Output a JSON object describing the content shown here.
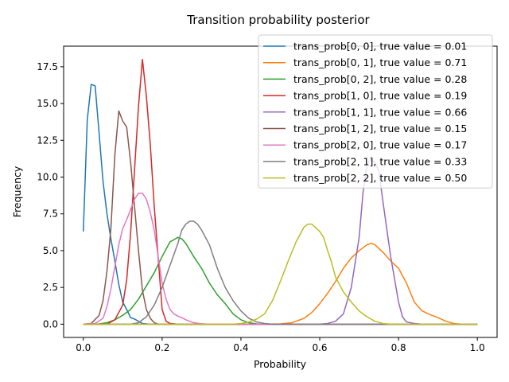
{
  "chart_data": {
    "type": "line",
    "title": "Transition probability posterior",
    "xlabel": "Probability",
    "ylabel": "Frequency",
    "xlim": [
      -0.05,
      1.05
    ],
    "ylim": [
      -0.9,
      18.9
    ],
    "xticks": [
      "0.0",
      "0.2",
      "0.4",
      "0.6",
      "0.8",
      "1.0"
    ],
    "yticks": [
      "0.0",
      "2.5",
      "5.0",
      "7.5",
      "10.0",
      "12.5",
      "15.0",
      "17.5"
    ],
    "grid": false,
    "legend_position": "upper-right",
    "series": [
      {
        "name": "trans_prob[0, 0], true value = 0.01",
        "color": "#1f77b4",
        "points": [
          [
            0,
            6.3
          ],
          [
            0.01,
            13.9
          ],
          [
            0.02,
            16.3
          ],
          [
            0.03,
            16.2
          ],
          [
            0.04,
            13.0
          ],
          [
            0.05,
            9.7
          ],
          [
            0.06,
            7.5
          ],
          [
            0.07,
            5.8
          ],
          [
            0.08,
            4.3
          ],
          [
            0.09,
            2.7
          ],
          [
            0.1,
            1.5
          ],
          [
            0.11,
            1.0
          ],
          [
            0.12,
            0.45
          ],
          [
            0.13,
            0.35
          ],
          [
            0.14,
            0.2
          ],
          [
            0.15,
            0.05
          ],
          [
            0.17,
            0.0
          ],
          [
            1.0,
            0.0
          ]
        ]
      },
      {
        "name": "trans_prob[0, 1], true value = 0.71",
        "color": "#ff7f0e",
        "points": [
          [
            0,
            0
          ],
          [
            0.45,
            0
          ],
          [
            0.5,
            0.02
          ],
          [
            0.53,
            0.1
          ],
          [
            0.56,
            0.4
          ],
          [
            0.58,
            0.8
          ],
          [
            0.6,
            1.4
          ],
          [
            0.62,
            2.1
          ],
          [
            0.64,
            2.9
          ],
          [
            0.66,
            3.8
          ],
          [
            0.68,
            4.5
          ],
          [
            0.7,
            5.0
          ],
          [
            0.72,
            5.4
          ],
          [
            0.73,
            5.5
          ],
          [
            0.74,
            5.4
          ],
          [
            0.76,
            4.9
          ],
          [
            0.78,
            4.3
          ],
          [
            0.8,
            3.8
          ],
          [
            0.82,
            2.8
          ],
          [
            0.84,
            1.5
          ],
          [
            0.86,
            0.9
          ],
          [
            0.88,
            0.65
          ],
          [
            0.9,
            0.45
          ],
          [
            0.92,
            0.2
          ],
          [
            0.94,
            0.05
          ],
          [
            0.96,
            0
          ],
          [
            1.0,
            0
          ]
        ]
      },
      {
        "name": "trans_prob[0, 2], true value = 0.28",
        "color": "#2ca02c",
        "points": [
          [
            0,
            0
          ],
          [
            0.04,
            0.02
          ],
          [
            0.06,
            0.1
          ],
          [
            0.08,
            0.3
          ],
          [
            0.1,
            0.6
          ],
          [
            0.12,
            1.0
          ],
          [
            0.14,
            1.7
          ],
          [
            0.16,
            2.6
          ],
          [
            0.18,
            3.5
          ],
          [
            0.2,
            4.6
          ],
          [
            0.22,
            5.6
          ],
          [
            0.24,
            5.9
          ],
          [
            0.25,
            5.8
          ],
          [
            0.26,
            5.5
          ],
          [
            0.28,
            4.6
          ],
          [
            0.3,
            3.8
          ],
          [
            0.32,
            2.8
          ],
          [
            0.34,
            2.0
          ],
          [
            0.36,
            1.4
          ],
          [
            0.38,
            0.7
          ],
          [
            0.4,
            0.3
          ],
          [
            0.42,
            0.1
          ],
          [
            0.44,
            0.02
          ],
          [
            0.46,
            0
          ],
          [
            1.0,
            0
          ]
        ]
      },
      {
        "name": "trans_prob[1, 0], true value = 0.19",
        "color": "#d62728",
        "points": [
          [
            0,
            0
          ],
          [
            0.06,
            0
          ],
          [
            0.08,
            0.3
          ],
          [
            0.1,
            1.3
          ],
          [
            0.11,
            3.0
          ],
          [
            0.12,
            6.2
          ],
          [
            0.13,
            10.5
          ],
          [
            0.14,
            14.8
          ],
          [
            0.15,
            18.0
          ],
          [
            0.16,
            15.5
          ],
          [
            0.17,
            12.2
          ],
          [
            0.18,
            8.0
          ],
          [
            0.19,
            4.5
          ],
          [
            0.2,
            1.0
          ],
          [
            0.21,
            0.2
          ],
          [
            0.22,
            0.05
          ],
          [
            0.24,
            0
          ],
          [
            1.0,
            0
          ]
        ]
      },
      {
        "name": "trans_prob[1, 1], true value = 0.66",
        "color": "#9467bd",
        "points": [
          [
            0,
            0
          ],
          [
            0.6,
            0
          ],
          [
            0.62,
            0.05
          ],
          [
            0.64,
            0.2
          ],
          [
            0.66,
            0.7
          ],
          [
            0.68,
            2.5
          ],
          [
            0.7,
            5.9
          ],
          [
            0.71,
            9.0
          ],
          [
            0.72,
            10.9
          ],
          [
            0.73,
            11.2
          ],
          [
            0.74,
            11.0
          ],
          [
            0.75,
            10.4
          ],
          [
            0.76,
            8.4
          ],
          [
            0.78,
            4.6
          ],
          [
            0.8,
            1.5
          ],
          [
            0.81,
            0.5
          ],
          [
            0.82,
            0.15
          ],
          [
            0.84,
            0.05
          ],
          [
            0.86,
            0
          ],
          [
            1.0,
            0
          ]
        ]
      },
      {
        "name": "trans_prob[1, 2], true value = 0.15",
        "color": "#8c564b",
        "points": [
          [
            0,
            0
          ],
          [
            0.02,
            0.05
          ],
          [
            0.04,
            0.6
          ],
          [
            0.05,
            1.6
          ],
          [
            0.06,
            3.6
          ],
          [
            0.07,
            6.5
          ],
          [
            0.08,
            11.5
          ],
          [
            0.09,
            14.5
          ],
          [
            0.1,
            13.8
          ],
          [
            0.11,
            13.4
          ],
          [
            0.12,
            11.0
          ],
          [
            0.13,
            8.0
          ],
          [
            0.14,
            5.0
          ],
          [
            0.15,
            2.3
          ],
          [
            0.16,
            1.0
          ],
          [
            0.17,
            0.4
          ],
          [
            0.18,
            0.1
          ],
          [
            0.19,
            0
          ],
          [
            1.0,
            0
          ]
        ]
      },
      {
        "name": "trans_prob[2, 0], true value = 0.17",
        "color": "#e377c2",
        "points": [
          [
            0,
            0
          ],
          [
            0.03,
            0.05
          ],
          [
            0.05,
            0.4
          ],
          [
            0.06,
            1.2
          ],
          [
            0.07,
            2.4
          ],
          [
            0.08,
            3.9
          ],
          [
            0.09,
            5.4
          ],
          [
            0.1,
            6.5
          ],
          [
            0.11,
            7.1
          ],
          [
            0.12,
            7.8
          ],
          [
            0.13,
            8.5
          ],
          [
            0.14,
            8.9
          ],
          [
            0.15,
            8.9
          ],
          [
            0.16,
            8.5
          ],
          [
            0.17,
            7.6
          ],
          [
            0.18,
            6.4
          ],
          [
            0.19,
            4.6
          ],
          [
            0.2,
            2.8
          ],
          [
            0.21,
            1.7
          ],
          [
            0.22,
            1.0
          ],
          [
            0.23,
            0.7
          ],
          [
            0.24,
            0.55
          ],
          [
            0.25,
            0.45
          ],
          [
            0.26,
            0.3
          ],
          [
            0.28,
            0.1
          ],
          [
            0.3,
            0.03
          ],
          [
            0.32,
            0
          ],
          [
            1.0,
            0
          ]
        ]
      },
      {
        "name": "trans_prob[2, 1], true value = 0.33",
        "color": "#7f7f7f",
        "points": [
          [
            0,
            0
          ],
          [
            0.12,
            0
          ],
          [
            0.14,
            0.1
          ],
          [
            0.16,
            0.5
          ],
          [
            0.18,
            1.3
          ],
          [
            0.2,
            2.5
          ],
          [
            0.22,
            4.0
          ],
          [
            0.24,
            5.5
          ],
          [
            0.25,
            6.4
          ],
          [
            0.26,
            6.8
          ],
          [
            0.27,
            7.0
          ],
          [
            0.28,
            7.0
          ],
          [
            0.29,
            6.8
          ],
          [
            0.3,
            6.4
          ],
          [
            0.32,
            5.4
          ],
          [
            0.34,
            3.8
          ],
          [
            0.36,
            2.5
          ],
          [
            0.38,
            1.6
          ],
          [
            0.4,
            0.9
          ],
          [
            0.42,
            0.4
          ],
          [
            0.44,
            0.15
          ],
          [
            0.46,
            0.05
          ],
          [
            0.48,
            0
          ],
          [
            1.0,
            0
          ]
        ]
      },
      {
        "name": "trans_prob[2, 2], true value = 0.50",
        "color": "#bcbd22",
        "points": [
          [
            0,
            0
          ],
          [
            0.38,
            0
          ],
          [
            0.4,
            0.05
          ],
          [
            0.42,
            0.15
          ],
          [
            0.44,
            0.35
          ],
          [
            0.46,
            0.7
          ],
          [
            0.48,
            1.6
          ],
          [
            0.5,
            2.9
          ],
          [
            0.52,
            4.3
          ],
          [
            0.54,
            5.6
          ],
          [
            0.56,
            6.6
          ],
          [
            0.57,
            6.8
          ],
          [
            0.58,
            6.8
          ],
          [
            0.6,
            6.3
          ],
          [
            0.61,
            5.9
          ],
          [
            0.62,
            5.0
          ],
          [
            0.63,
            4.2
          ],
          [
            0.64,
            3.2
          ],
          [
            0.66,
            2.2
          ],
          [
            0.68,
            1.5
          ],
          [
            0.7,
            0.9
          ],
          [
            0.72,
            0.5
          ],
          [
            0.74,
            0.2
          ],
          [
            0.76,
            0.05
          ],
          [
            0.78,
            0
          ],
          [
            1.0,
            0
          ]
        ]
      }
    ]
  }
}
